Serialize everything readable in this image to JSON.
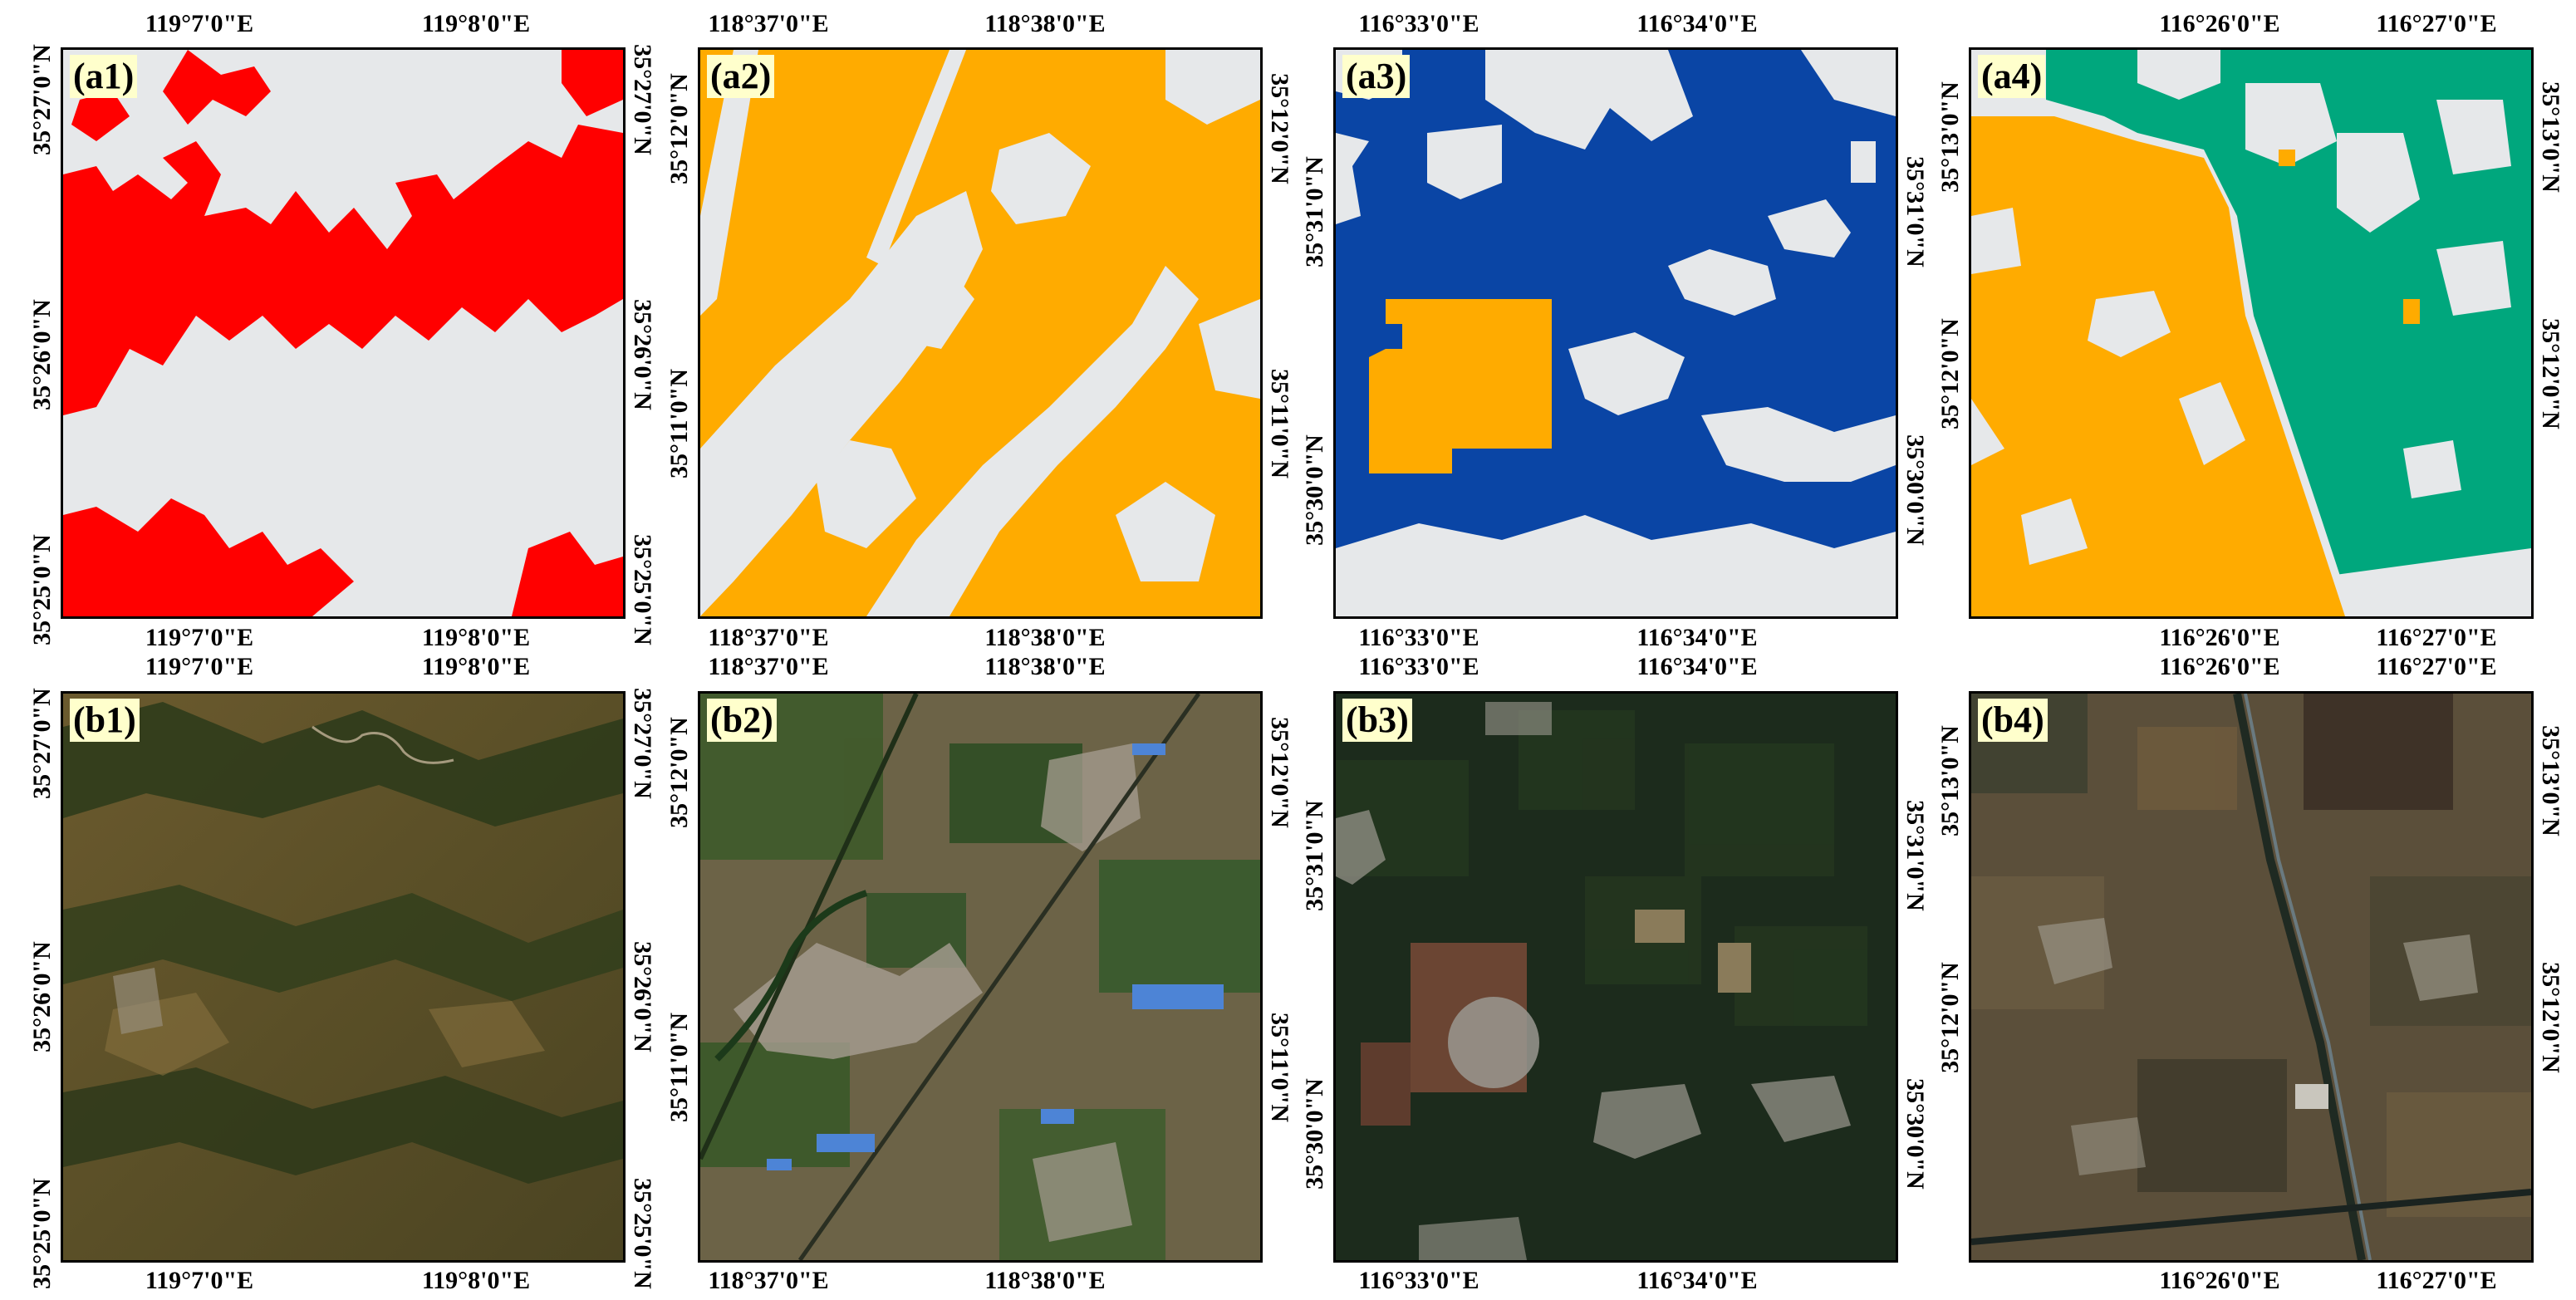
{
  "colors": {
    "background": "#e6e8ea",
    "class_red": "#ff0000",
    "class_orange": "#ffab00",
    "class_blue": "#0a45a5",
    "class_green": "#00a77d",
    "badge": "#ffffcc"
  },
  "panels": [
    {
      "id": "a1",
      "label": "(a1)",
      "type": "classification-map",
      "top_lon": [
        "119°7'0\"E",
        "119°8'0\"E"
      ],
      "bottom_lon": [
        "119°7'0\"E",
        "119°8'0\"E"
      ],
      "left_lat": [
        "35°27'0\"N",
        "35°26'0\"N",
        "35°25'0\"N"
      ],
      "right_lat": [
        "35°27'0\"N",
        "35°26'0\"N",
        "35°25'0\"N"
      ]
    },
    {
      "id": "a2",
      "label": "(a2)",
      "type": "classification-map",
      "top_lon": [
        "118°37'0\"E",
        "118°38'0\"E"
      ],
      "bottom_lon": [
        "118°37'0\"E",
        "118°38'0\"E"
      ],
      "left_lat": [
        "35°12'0\"N",
        "35°11'0\"N"
      ],
      "right_lat": [
        "35°12'0\"N",
        "35°11'0\"N"
      ]
    },
    {
      "id": "a3",
      "label": "(a3)",
      "type": "classification-map",
      "top_lon": [
        "116°33'0\"E",
        "116°34'0\"E"
      ],
      "bottom_lon": [
        "116°33'0\"E",
        "116°34'0\"E"
      ],
      "left_lat": [
        "35°31'0\"N",
        "35°30'0\"N"
      ],
      "right_lat": [
        "35°31'0\"N",
        "35°30'0\"N"
      ]
    },
    {
      "id": "a4",
      "label": "(a4)",
      "type": "classification-map",
      "top_lon": [
        "116°26'0\"E",
        "116°27'0\"E"
      ],
      "bottom_lon": [
        "116°26'0\"E",
        "116°27'0\"E"
      ],
      "left_lat": [
        "35°13'0\"N",
        "35°12'0\"N"
      ],
      "right_lat": [
        "35°13'0\"N",
        "35°12'0\"N"
      ]
    },
    {
      "id": "b1",
      "label": "(b1)",
      "type": "satellite-image",
      "top_lon": [
        "119°7'0\"E",
        "119°8'0\"E"
      ],
      "bottom_lon": [
        "119°7'0\"E",
        "119°8'0\"E"
      ],
      "left_lat": [
        "35°27'0\"N",
        "35°26'0\"N",
        "35°25'0\"N"
      ],
      "right_lat": [
        "35°27'0\"N",
        "35°26'0\"N",
        "35°25'0\"N"
      ]
    },
    {
      "id": "b2",
      "label": "(b2)",
      "type": "satellite-image",
      "top_lon": [
        "118°37'0\"E",
        "118°38'0\"E"
      ],
      "bottom_lon": [
        "118°37'0\"E",
        "118°38'0\"E"
      ],
      "left_lat": [
        "35°12'0\"N",
        "35°11'0\"N"
      ],
      "right_lat": [
        "35°12'0\"N",
        "35°11'0\"N"
      ]
    },
    {
      "id": "b3",
      "label": "(b3)",
      "type": "satellite-image",
      "top_lon": [
        "116°33'0\"E",
        "116°34'0\"E"
      ],
      "bottom_lon": [
        "116°33'0\"E",
        "116°34'0\"E"
      ],
      "left_lat": [
        "35°31'0\"N",
        "35°30'0\"N"
      ],
      "right_lat": [
        "35°31'0\"N",
        "35°30'0\"N"
      ]
    },
    {
      "id": "b4",
      "label": "(b4)",
      "type": "satellite-image",
      "top_lon": [
        "116°26'0\"E",
        "116°27'0\"E"
      ],
      "bottom_lon": [
        "116°26'0\"E",
        "116°27'0\"E"
      ],
      "left_lat": [
        "35°13'0\"N",
        "35°12'0\"N"
      ],
      "right_lat": [
        "35°13'0\"N",
        "35°12'0\"N"
      ]
    }
  ]
}
